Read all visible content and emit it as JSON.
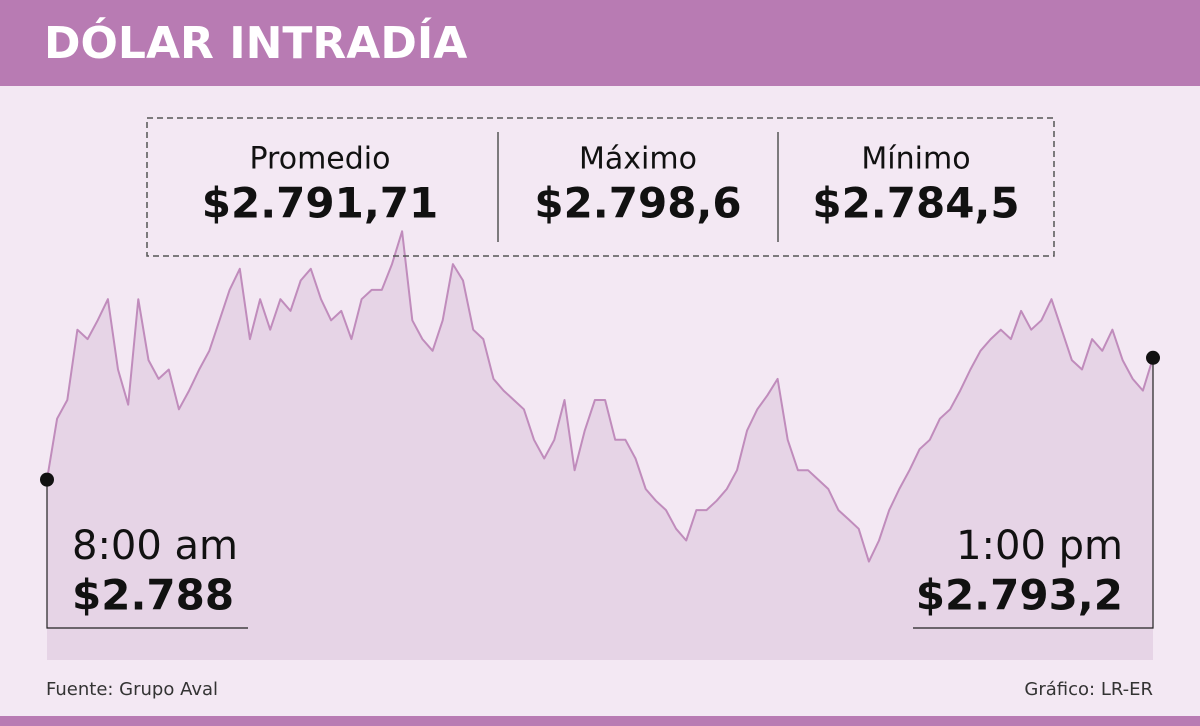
{
  "chart_data": {
    "type": "area",
    "title": "DÓLAR INTRADÍA",
    "start_time": "8:00 am",
    "end_time": "1:00 pm",
    "values": [
      2788,
      2790.6,
      2791.4,
      2794.4,
      2794.0,
      2794.8,
      2795.7,
      2792.7,
      2791.2,
      2795.7,
      2793.1,
      2792.3,
      2792.7,
      2791.0,
      2791.8,
      2792.7,
      2793.5,
      2794.8,
      2796.1,
      2797.0,
      2794.0,
      2795.7,
      2794.4,
      2795.7,
      2795.2,
      2796.5,
      2797.0,
      2795.7,
      2794.8,
      2795.2,
      2794.0,
      2795.7,
      2796.1,
      2796.1,
      2797.2,
      2798.6,
      2794.8,
      2794.0,
      2793.5,
      2794.8,
      2797.2,
      2796.5,
      2794.4,
      2794.0,
      2792.3,
      2791.8,
      2791.4,
      2791.0,
      2789.7,
      2788.9,
      2789.7,
      2791.4,
      2788.4,
      2790.1,
      2791.4,
      2791.4,
      2789.7,
      2789.7,
      2788.9,
      2787.6,
      2787.1,
      2786.7,
      2785.9,
      2785.4,
      2786.7,
      2786.7,
      2787.1,
      2787.6,
      2788.4,
      2790.1,
      2791.0,
      2791.6,
      2792.3,
      2789.7,
      2788.4,
      2788.4,
      2788.0,
      2787.6,
      2786.7,
      2786.3,
      2785.9,
      2784.5,
      2785.4,
      2786.7,
      2787.6,
      2788.4,
      2789.3,
      2789.7,
      2790.6,
      2791.0,
      2791.8,
      2792.7,
      2793.5,
      2794.0,
      2794.4,
      2794.0,
      2795.2,
      2794.4,
      2794.8,
      2795.7,
      2794.4,
      2793.1,
      2792.7,
      2794.0,
      2793.5,
      2794.4,
      2793.1,
      2792.3,
      2791.8,
      2793.2
    ],
    "value_labels": [
      "$2.788",
      null,
      null,
      null,
      null,
      null,
      null,
      null,
      null,
      null,
      null,
      null,
      null,
      null,
      null,
      null,
      null,
      null,
      null,
      null,
      null,
      null,
      null,
      null,
      null,
      null,
      null,
      null,
      null,
      null,
      null,
      null,
      null,
      null,
      null,
      null,
      null,
      null,
      null,
      null,
      null,
      null,
      null,
      null,
      null,
      null,
      null,
      null,
      null,
      null,
      null,
      null,
      null,
      null,
      null,
      null,
      null,
      null,
      null,
      null,
      null,
      null,
      null,
      null,
      null,
      null,
      null,
      null,
      null,
      null,
      null,
      null,
      null,
      null,
      null,
      null,
      null,
      null,
      null,
      null,
      null,
      null,
      null,
      null,
      null,
      null,
      null,
      null,
      null,
      null,
      null,
      null,
      null,
      null,
      null,
      null,
      null,
      null,
      null,
      null,
      null,
      null,
      null,
      null,
      null,
      null,
      null,
      null,
      null,
      "$2.793,2"
    ],
    "ylim": [
      2780.3,
      2800
    ],
    "color": "#c08cbc",
    "fill": "#e6d4e6"
  },
  "stats": [
    {
      "label": "Promedio",
      "value": "$2.791,71"
    },
    {
      "label": "Máximo",
      "value": "$2.798,6"
    },
    {
      "label": "Mínimo",
      "value": "$2.784,5"
    }
  ],
  "footer": {
    "source": "Fuente: Grupo Aval",
    "credit": "Gráfico: LR-ER"
  }
}
